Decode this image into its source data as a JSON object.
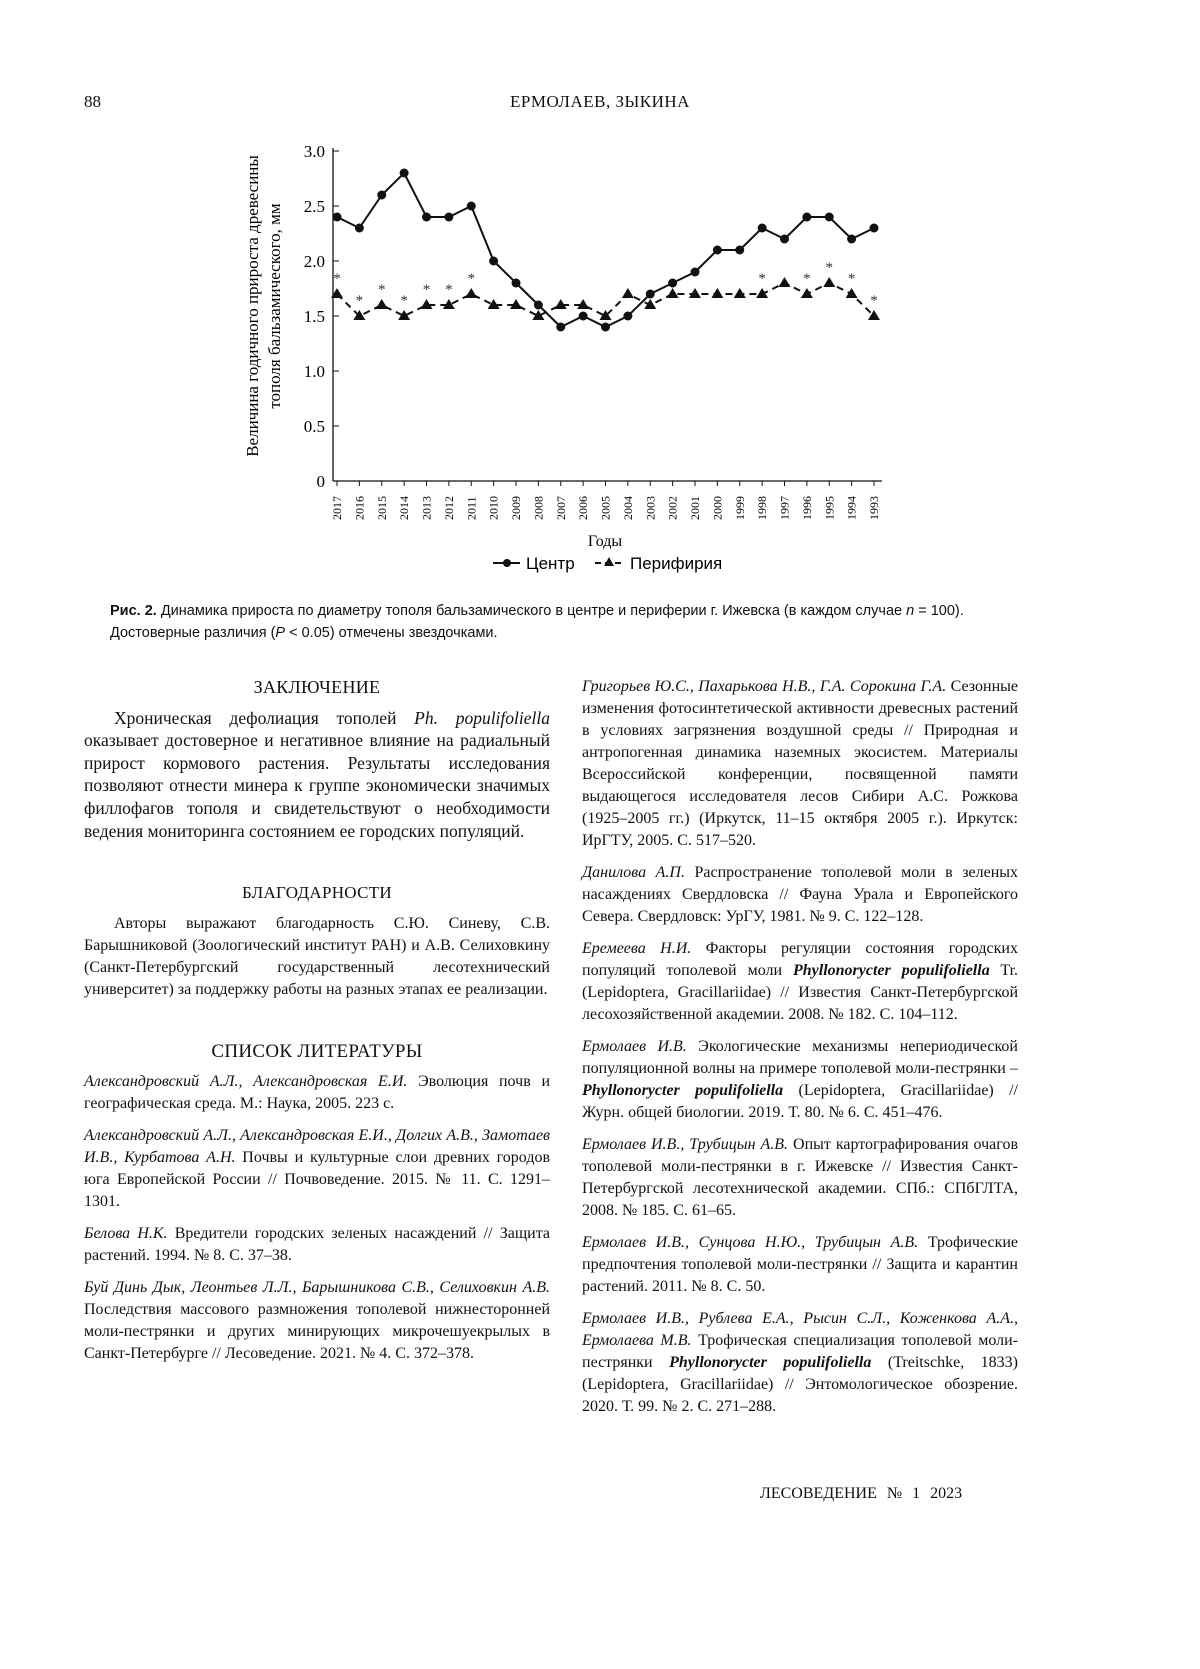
{
  "header": {
    "page_number": "88",
    "running_head": "ЕРМОЛАЕВ, ЗЫКИНА"
  },
  "chart_data": {
    "type": "line",
    "ylabel_line1": "Величина годичного прироста древесины",
    "ylabel_line2": "тополя бальзамического, мм",
    "xlabel": "Годы",
    "ylim": [
      0,
      3.0
    ],
    "yticks": [
      "0",
      "0.5",
      "1.0",
      "1.5",
      "2.0",
      "2.5",
      "3.0"
    ],
    "categories": [
      "2017",
      "2016",
      "2015",
      "2014",
      "2013",
      "2012",
      "2011",
      "2010",
      "2009",
      "2008",
      "2007",
      "2006",
      "2005",
      "2004",
      "2003",
      "2002",
      "2001",
      "2000",
      "1999",
      "1998",
      "1997",
      "1996",
      "1995",
      "1994",
      "1993"
    ],
    "series": [
      {
        "name": "Центр",
        "style": "solid-circle",
        "values": [
          2.4,
          2.3,
          2.6,
          2.8,
          2.4,
          2.4,
          2.5,
          2.0,
          1.8,
          1.6,
          1.4,
          1.5,
          1.4,
          1.5,
          1.7,
          1.8,
          1.9,
          2.1,
          2.1,
          2.3,
          2.2,
          2.4,
          2.4,
          2.2,
          2.3
        ]
      },
      {
        "name": "Перифирия",
        "style": "dashed-triangle",
        "values": [
          1.7,
          1.5,
          1.6,
          1.5,
          1.6,
          1.6,
          1.7,
          1.6,
          1.6,
          1.5,
          1.6,
          1.6,
          1.5,
          1.7,
          1.6,
          1.7,
          1.7,
          1.7,
          1.7,
          1.7,
          1.8,
          1.7,
          1.8,
          1.7,
          1.5
        ]
      }
    ],
    "significant_marker": "*",
    "significant_years": [
      "2017",
      "2016",
      "2015",
      "2014",
      "2013",
      "2012",
      "2011",
      "1998",
      "1996",
      "1995",
      "1994",
      "1993"
    ],
    "legend_placement": "bottom",
    "grid": false
  },
  "caption": {
    "label": "Рис. 2.",
    "text": " Динамика прироста по диаметру тополя бальзамического в центре и периферии г. Ижевска (в каждом случае ",
    "n": "n",
    "n_text": " = 100). Достоверные различия (",
    "p": "P",
    "p_text": " < 0.05) отмечены звездочками."
  },
  "conclusion": {
    "title": "ЗАКЛЮЧЕНИЕ",
    "t1": "Хроническая дефолиация тополей ",
    "i1": "Ph. populifoliella",
    "t2": " оказывает достоверное и негативное влияние на радиальный прирост кормового растения. Результаты исследования позволяют отнести минера к группе экономически значимых филлофагов тополя и свидетельствуют о необходимости ведения мониторинга состоянием ее городских популяций."
  },
  "acknowledgments": {
    "title": "БЛАГОДАРНОСТИ",
    "text": "Авторы выражают благодарность С.Ю. Синеву, С.В. Барышниковой (Зоологический институт РАН) и А.В. Селиховкину (Санкт-Петербургский государственный лесотехнический университет) за поддержку работы на разных этапах ее реализации."
  },
  "references": {
    "title": "СПИСОК ЛИТЕРАТУРЫ",
    "left": [
      {
        "authors": "Александровский А.Л., Александровская Е.И.",
        "text": " Эволюция почв и географическая среда. М.: Наука, 2005. 223 с."
      },
      {
        "authors": "Александровский А.Л., Александровская Е.И., Долгих А.В., Замотаев И.В., Курбатова А.Н.",
        "text": " Почвы и культурные слои древних городов юга Европейской России // Почвоведение. 2015. № 11. С. 1291–1301."
      },
      {
        "authors": "Белова Н.К.",
        "text": " Вредители городских зеленых насаждений // Защита растений. 1994. № 8. С. 37–38."
      },
      {
        "authors": "Буй Динь Дык, Леонтьев Л.Л., Барышникова С.В., Селиховкин А.В.",
        "text": " Последствия массового размножения тополевой нижнесторонней моли-пестрянки и других минирующих микрочешуекрылых в Санкт-Петербурге // Лесоведение. 2021. № 4. С. 372–378."
      }
    ],
    "right": [
      {
        "authors": "Григорьев Ю.С., Пахарькова Н.В., Г.А. Сорокина Г.А.",
        "text": " Сезонные изменения фотосинтетической активности древесных растений в условиях загрязнения воздушной среды // Природная и антропогенная динамика наземных экосистем. Материалы Всероссийской конференции, посвященной памяти выдающегося исследователя лесов Сибири А.С. Рожкова (1925–2005 гг.) (Иркутск, 11–15 октября 2005 г.). Иркутск: ИрГТУ, 2005. С. 517–520."
      },
      {
        "authors": "Данилова А.П.",
        "text": " Распространение тополевой моли в зеленых насаждениях Свердловска // Фауна Урала и Европейского Севера. Свердловск: УрГУ, 1981. № 9. С. 122–128."
      },
      {
        "authors": "Еремеева Н.И.",
        "text": " Факторы регуляции состояния городских популяций тополевой моли ",
        "italic": "Phyllonorycter populifoliella",
        "text2": " Tr. (Lepidoptera, Gracillariidae) // Известия Санкт-Петербургской лесохозяйственной академии. 2008. № 182. С. 104–112."
      },
      {
        "authors": "Ермолаев И.В.",
        "text": " Экологические механизмы непериодической популяционной волны на примере тополевой моли-пестрянки – ",
        "italic": "Phyllonorycter populifoliella",
        "text2": " (Lepidoptera, Gracillariidae) // Журн. общей биологии. 2019. Т. 80. № 6. С. 451–476."
      },
      {
        "authors": "Ермолаев И.В., Трубицын А.В.",
        "text": " Опыт картографирования очагов тополевой моли-пестрянки в г. Ижевске // Известия Санкт-Петербургской лесотехнической академии. СПб.: СПбГЛТА, 2008. № 185. С. 61–65."
      },
      {
        "authors": "Ермолаев И.В., Сунцова Н.Ю., Трубицын А.В.",
        "text": " Трофические предпочтения тополевой моли-пестрянки // Защита и карантин растений. 2011. № 8. С. 50."
      },
      {
        "authors": "Ермолаев И.В., Рублева Е.А., Рысин С.Л., Коженкова А.А., Ермолаева М.В.",
        "text": " Трофическая специализация тополевой моли-пестрянки ",
        "italic": "Phyllonorycter populifoliella",
        "text2": " (Treitschke, 1833) (Lepidoptera, Gracillariidae) // Энтомологическое обозрение. 2020. Т. 99. № 2. С. 271–288."
      }
    ]
  },
  "footer": {
    "journal": "ЛЕСОВЕДЕНИЕ",
    "issue": "№ 1",
    "year": "2023"
  }
}
